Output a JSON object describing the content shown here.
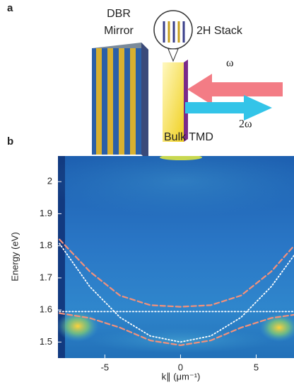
{
  "panel_a": {
    "label": "a",
    "mirror_line1": "DBR",
    "mirror_line2": "Mirror",
    "stack": "2H Stack",
    "omega": "ω",
    "two_omega": "2ω",
    "bulk": "Bulk TMD"
  },
  "chart_data": {
    "type": "line",
    "panel_label": "b",
    "ylabel": "Energy (eV)",
    "xlabel": "k∥ (μm⁻¹)",
    "x": [
      -8,
      -6,
      -4,
      -2,
      0,
      2,
      4,
      6,
      7.5
    ],
    "series": [
      {
        "color": "#f4917a",
        "style": "dashed",
        "values": [
          1.82,
          1.72,
          1.645,
          1.615,
          1.61,
          1.615,
          1.645,
          1.72,
          1.8
        ]
      },
      {
        "color": "#f4917a",
        "style": "dashed",
        "values": [
          1.59,
          1.575,
          1.545,
          1.505,
          1.49,
          1.505,
          1.545,
          1.575,
          1.585
        ]
      },
      {
        "color": "#ffffff",
        "style": "dotted",
        "values": [
          1.807,
          1.673,
          1.577,
          1.519,
          1.5,
          1.519,
          1.577,
          1.673,
          1.77
        ]
      },
      {
        "color": "#ffffff",
        "style": "dotted",
        "values": [
          1.595,
          1.595,
          1.595,
          1.595,
          1.595,
          1.595,
          1.595,
          1.595,
          1.595
        ]
      }
    ],
    "xlim": [
      -8.1,
      7.5
    ],
    "ylim": [
      1.45,
      2.08
    ],
    "xticks": [
      -5,
      0,
      5
    ],
    "yticks": [
      1.5,
      1.6,
      1.7,
      1.8,
      1.9,
      2.0
    ]
  }
}
